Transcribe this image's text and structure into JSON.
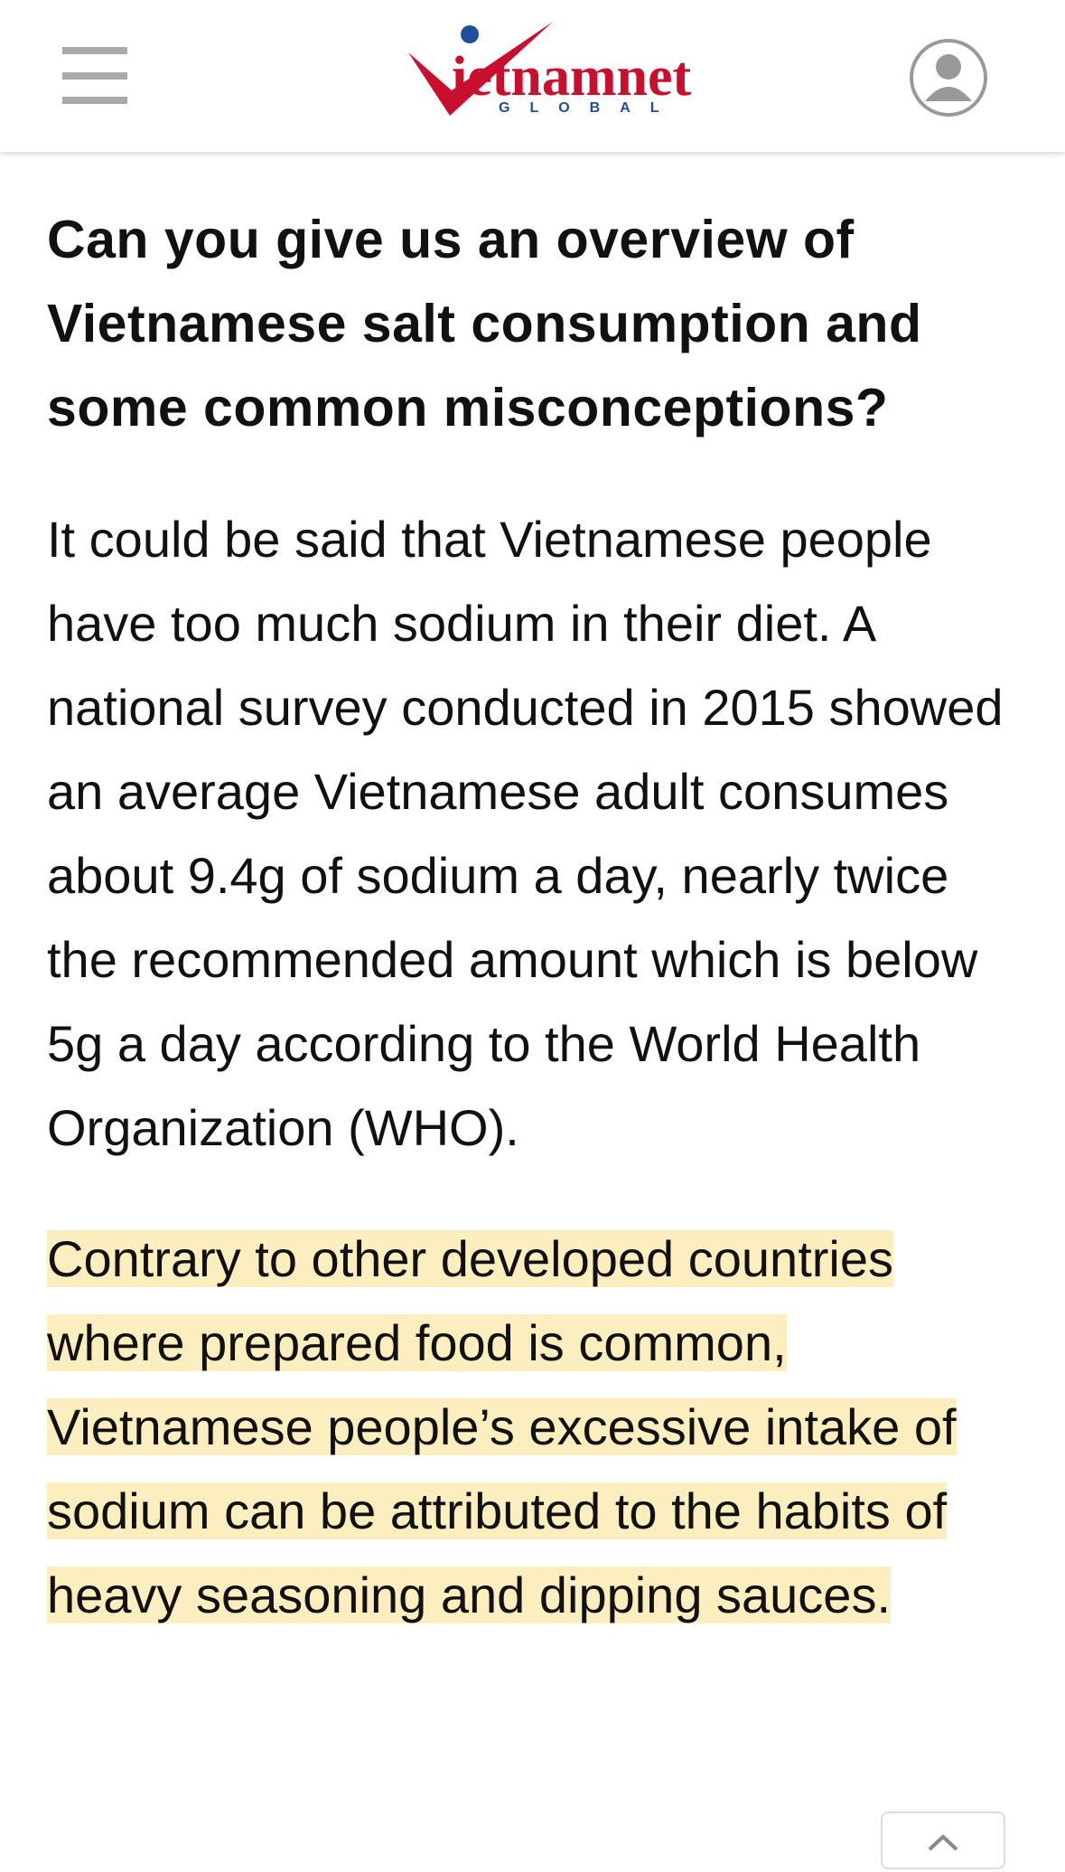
{
  "header": {
    "logo": "ietnamnet",
    "logo_sub": "GLOBAL"
  },
  "article": {
    "heading": "Can you give us an overview of Vietnamese salt consumption and some common misconceptions?",
    "paragraphs": [
      "It could be said that Vietnamese people have too much sodium in their diet. A national survey conducted in 2015 showed an average Vietnamese adult consumes about 9.4g of sodium a day, nearly twice the recommended amount which is below 5g a day according to the World Health Organization (WHO).",
      "Contrary to other developed countries where prepared food is common, Vietnamese people’s excessive intake of sodium can be attributed to the habits of heavy seasoning and dipping sauces."
    ]
  }
}
